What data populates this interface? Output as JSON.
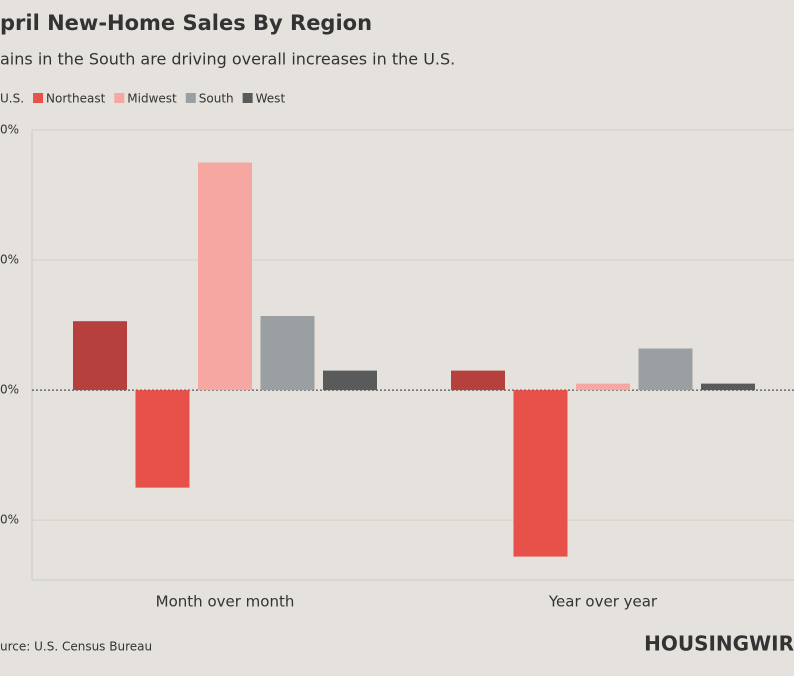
{
  "chart_data": {
    "type": "bar",
    "title": "pril New-Home Sales By Region",
    "subtitle": "ains in the South are driving overall increases in the U.S.",
    "categories": [
      "Month over month",
      "Year over year"
    ],
    "series": [
      {
        "name": "U.S.",
        "color": "#b5403d",
        "values": [
          5.3,
          1.5
        ]
      },
      {
        "name": "Northeast",
        "color": "#e8504a",
        "values": [
          -7.5,
          -12.8
        ]
      },
      {
        "name": "Midwest",
        "color": "#f6a7a1",
        "values": [
          17.5,
          0.5
        ]
      },
      {
        "name": "South",
        "color": "#9a9fa1",
        "values": [
          5.7,
          3.2
        ]
      },
      {
        "name": "West",
        "color": "#595b5b",
        "values": [
          1.5,
          0.5
        ]
      }
    ],
    "ylim": [
      -14.6,
      20
    ],
    "yticks": [
      {
        "value": -10,
        "label": "0%"
      },
      {
        "value": 0,
        "label": "0%"
      },
      {
        "value": 10,
        "label": "0%"
      },
      {
        "value": 20,
        "label": "0%"
      }
    ],
    "grid": true,
    "source": "urce: U.S. Census Bureau",
    "logo": "HOUSINGWIR"
  }
}
